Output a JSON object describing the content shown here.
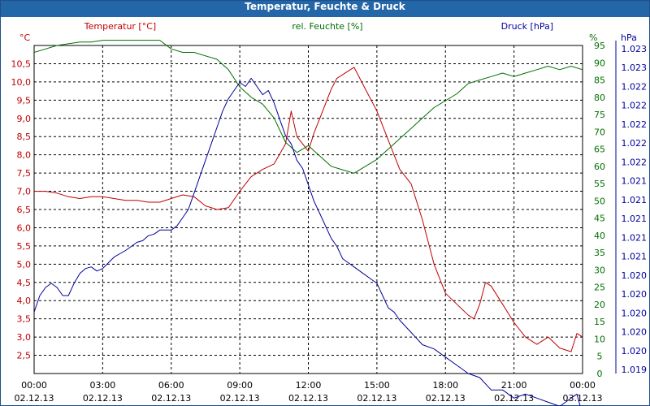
{
  "window": {
    "title": "Temperatur, Feuchte & Druck"
  },
  "colors": {
    "temperature": "#c00000",
    "humidity": "#007000",
    "pressure": "#00009a",
    "grid": "#000000",
    "titlebar": "#2467a8"
  },
  "chart_data": {
    "type": "line",
    "grid": true,
    "x_range": [
      "02.12.13 00:00",
      "03.12.13 00:00"
    ],
    "x_ticks": [
      {
        "time": "00:00",
        "date": "02.12.13"
      },
      {
        "time": "03:00",
        "date": "02.12.13"
      },
      {
        "time": "06:00",
        "date": "02.12.13"
      },
      {
        "time": "09:00",
        "date": "02.12.13"
      },
      {
        "time": "12:00",
        "date": "02.12.13"
      },
      {
        "time": "15:00",
        "date": "02.12.13"
      },
      {
        "time": "18:00",
        "date": "02.12.13"
      },
      {
        "time": "21:00",
        "date": "02.12.13"
      },
      {
        "time": "00:00",
        "date": "03.12.13"
      }
    ],
    "axes": {
      "left": {
        "label": "Temperatur [°C]",
        "unit": "°C",
        "range": [
          2.0,
          11.0
        ],
        "ticks": [
          "2,5",
          "3,0",
          "3,5",
          "4,0",
          "4,5",
          "5,0",
          "5,5",
          "6,0",
          "6,5",
          "7,0",
          "7,5",
          "8,0",
          "8,5",
          "9,0",
          "9,5",
          "10,0",
          "10,5"
        ]
      },
      "right1": {
        "label": "rel. Feuchte [%]",
        "unit": "%",
        "range": [
          0,
          95
        ],
        "ticks": [
          "0",
          "5",
          "10",
          "15",
          "20",
          "25",
          "30",
          "35",
          "40",
          "45",
          "50",
          "55",
          "60",
          "65",
          "70",
          "75",
          "80",
          "85",
          "90",
          "95"
        ]
      },
      "right2": {
        "label": "Druck [hPa]",
        "unit": "hPa",
        "range": [
          1019.5,
          1023.5
        ],
        "ticks": [
          "1.019",
          "1.020",
          "1.020",
          "1.020",
          "1.020",
          "1.020",
          "1.021",
          "1.021",
          "1.021",
          "1.021",
          "1.021",
          "1.022",
          "1.022",
          "1.022",
          "1.022",
          "1.022",
          "1.023",
          "1.023"
        ]
      }
    },
    "series": [
      {
        "name": "Temperatur [°C]",
        "axis": "left",
        "x": [
          0,
          0.5,
          1,
          1.5,
          2,
          2.5,
          3,
          3.5,
          4,
          4.5,
          5,
          5.5,
          6,
          6.5,
          7,
          7.5,
          8,
          8.5,
          9,
          9.5,
          10,
          10.5,
          11,
          11.25,
          11.5,
          11.75,
          12,
          12.25,
          12.5,
          12.75,
          13,
          13.25,
          13.5,
          13.75,
          14,
          14.5,
          15,
          15.5,
          16,
          16.5,
          17,
          17.5,
          18,
          18.5,
          19,
          19.25,
          19.5,
          19.75,
          20,
          20.5,
          21,
          21.5,
          22,
          22.5,
          23,
          23.5,
          23.75,
          24
        ],
        "y": [
          7.0,
          7.0,
          6.95,
          6.85,
          6.8,
          6.85,
          6.85,
          6.8,
          6.75,
          6.75,
          6.7,
          6.7,
          6.8,
          6.9,
          6.85,
          6.6,
          6.5,
          6.55,
          7.0,
          7.4,
          7.6,
          7.75,
          8.3,
          9.2,
          8.5,
          8.3,
          8.1,
          8.6,
          9.0,
          9.4,
          9.8,
          10.1,
          10.2,
          10.3,
          10.4,
          9.8,
          9.2,
          8.4,
          7.6,
          7.2,
          6.2,
          5.0,
          4.2,
          3.9,
          3.6,
          3.5,
          3.9,
          4.5,
          4.4,
          3.9,
          3.4,
          3.0,
          2.8,
          3.0,
          2.7,
          2.6,
          3.1,
          3.0
        ]
      },
      {
        "name": "rel. Feuchte [%]",
        "axis": "right1",
        "x": [
          0,
          0.5,
          1,
          1.5,
          2,
          2.5,
          3,
          3.5,
          4,
          4.5,
          5,
          5.5,
          6,
          6.5,
          7,
          7.5,
          8,
          8.5,
          9,
          9.5,
          10,
          10.5,
          11,
          11.5,
          12,
          12.5,
          13,
          13.5,
          14,
          14.5,
          15,
          15.5,
          16,
          16.5,
          17,
          17.5,
          18,
          18.5,
          19,
          19.5,
          20,
          20.5,
          21,
          21.5,
          22,
          22.5,
          23,
          23.5,
          24
        ],
        "y": [
          93,
          94,
          95,
          95.5,
          96,
          96,
          96.5,
          96.5,
          96.5,
          96.5,
          96.5,
          96.5,
          94,
          93,
          93,
          92,
          91,
          88,
          83,
          80,
          78,
          74,
          67,
          64,
          66,
          63,
          60,
          59,
          58,
          60,
          62,
          65,
          68,
          71,
          74,
          77,
          79,
          81,
          84,
          85,
          86,
          87,
          86,
          87,
          88,
          89,
          88,
          89,
          88
        ]
      },
      {
        "name": "Druck [hPa]",
        "axis": "right2",
        "x": [
          0,
          0.25,
          0.5,
          0.75,
          1,
          1.25,
          1.5,
          1.75,
          2,
          2.25,
          2.5,
          2.75,
          3,
          3.25,
          3.5,
          3.75,
          4,
          4.25,
          4.5,
          4.75,
          5,
          5.25,
          5.5,
          5.75,
          6,
          6.25,
          6.5,
          6.75,
          7,
          7.25,
          7.5,
          7.75,
          8,
          8.25,
          8.5,
          8.75,
          9,
          9.25,
          9.5,
          9.75,
          10,
          10.25,
          10.5,
          10.75,
          11,
          11.25,
          11.5,
          11.75,
          12,
          12.25,
          12.5,
          12.75,
          13,
          13.25,
          13.5,
          13.75,
          14,
          14.25,
          14.5,
          14.75,
          15,
          15.25,
          15.5,
          15.75,
          16,
          16.5,
          17,
          17.5,
          18,
          18.5,
          19,
          19.5,
          20,
          20.5,
          21,
          21.5,
          22,
          22.5,
          23,
          23.25,
          23.5,
          23.75,
          24
        ],
        "y": [
          1020.25,
          1020.45,
          1020.55,
          1020.6,
          1020.55,
          1020.45,
          1020.45,
          1020.6,
          1020.72,
          1020.78,
          1020.8,
          1020.75,
          1020.78,
          1020.85,
          1020.92,
          1020.96,
          1021.0,
          1021.05,
          1021.1,
          1021.12,
          1021.18,
          1021.2,
          1021.25,
          1021.25,
          1021.25,
          1021.3,
          1021.4,
          1021.5,
          1021.7,
          1021.9,
          1022.1,
          1022.3,
          1022.5,
          1022.7,
          1022.85,
          1022.95,
          1023.05,
          1023.0,
          1023.1,
          1023.0,
          1022.9,
          1022.95,
          1022.8,
          1022.6,
          1022.4,
          1022.3,
          1022.1,
          1022.0,
          1021.8,
          1021.6,
          1021.45,
          1021.3,
          1021.15,
          1021.05,
          1020.9,
          1020.85,
          1020.8,
          1020.75,
          1020.7,
          1020.65,
          1020.6,
          1020.45,
          1020.3,
          1020.25,
          1020.15,
          1020.0,
          1019.85,
          1019.8,
          1019.7,
          1019.6,
          1019.5,
          1019.45,
          1019.3,
          1019.3,
          1019.2,
          1019.25,
          1019.2,
          1019.15,
          1019.1,
          1019.15,
          1019.2,
          1019.25,
          1019.0
        ]
      }
    ]
  }
}
